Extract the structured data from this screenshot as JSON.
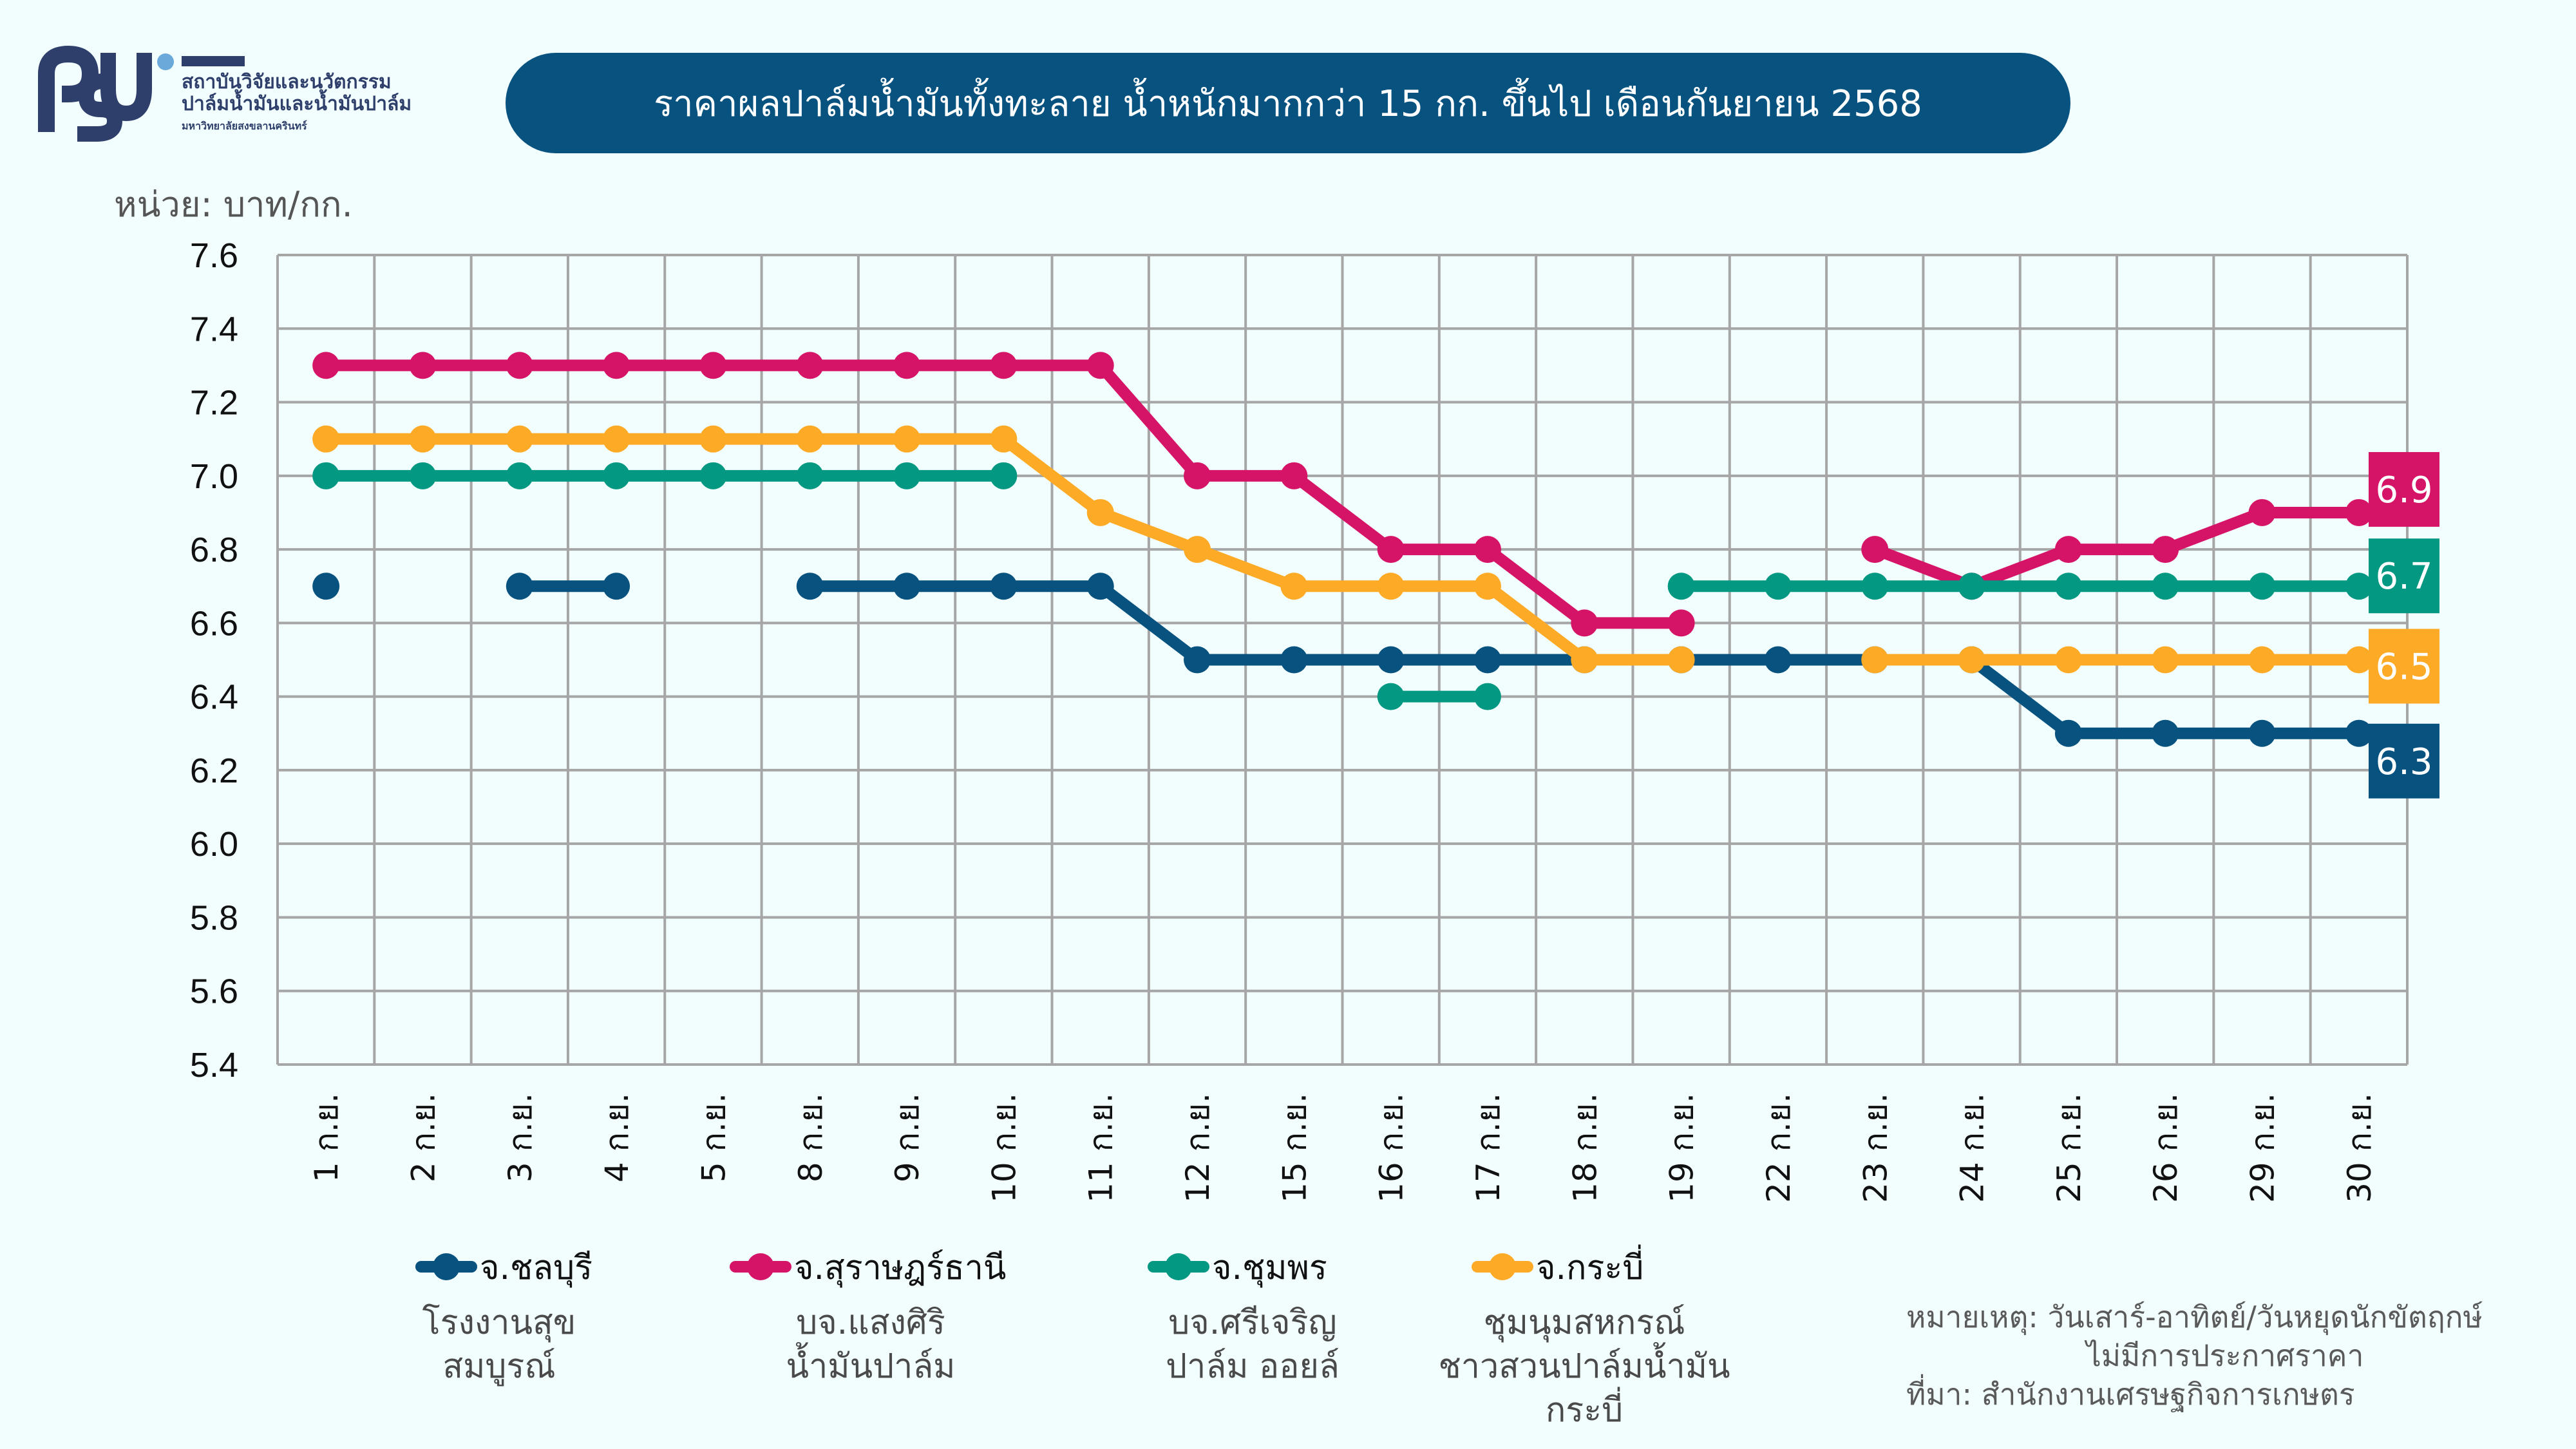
{
  "logo": {
    "mark": "PSU",
    "line1": "สถาบันวิจัยและนวัตกรรม",
    "line2": "ปาล์มน้ำมันและน้ำมันปาล์ม",
    "line3": "มหาวิทยาลัยสงขลานครินทร์"
  },
  "unit_label": "หน่วย: บาท/กก.",
  "chart_data": {
    "type": "line",
    "title": "ราคาผลปาล์มน้ำมันทั้งทะลาย น้ำหนักมากกว่า 15 กก. ขึ้นไป เดือนกันยายน 2568",
    "xlabel": "",
    "ylabel": "หน่วย: บาท/กก.",
    "ylim": [
      5.4,
      7.6
    ],
    "yticks": [
      "7.6",
      "7.4",
      "7.2",
      "7.0",
      "6.8",
      "6.6",
      "6.4",
      "6.2",
      "6.0",
      "5.8",
      "5.6",
      "5.4"
    ],
    "grid": true,
    "categories": [
      "1 ก.ย.",
      "2 ก.ย.",
      "3 ก.ย.",
      "4 ก.ย.",
      "5 ก.ย.",
      "8 ก.ย.",
      "9 ก.ย.",
      "10 ก.ย.",
      "11 ก.ย.",
      "12 ก.ย.",
      "15 ก.ย.",
      "16 ก.ย.",
      "17 ก.ย.",
      "18 ก.ย.",
      "19 ก.ย.",
      "22 ก.ย.",
      "23 ก.ย.",
      "24 ก.ย.",
      "25 ก.ย.",
      "26 ก.ย.",
      "29 ก.ย.",
      "30 ก.ย."
    ],
    "legend_position": "bottom",
    "series": [
      {
        "name": "จ.ชลบุรี",
        "source": [
          "โรงงานสุข",
          "สมบูรณ์"
        ],
        "color": "#08527f",
        "values": [
          6.7,
          null,
          6.7,
          6.7,
          null,
          6.7,
          6.7,
          6.7,
          6.7,
          6.5,
          6.5,
          6.5,
          6.5,
          6.5,
          6.5,
          6.5,
          6.5,
          6.5,
          6.3,
          6.3,
          6.3,
          6.3
        ],
        "end_label": "6.3"
      },
      {
        "name": "จ.สุราษฎร์ธานี",
        "source": [
          "บจ.แสงศิริ",
          "น้ำมันปาล์ม"
        ],
        "color": "#d51367",
        "values": [
          7.3,
          7.3,
          7.3,
          7.3,
          7.3,
          7.3,
          7.3,
          7.3,
          7.3,
          7.0,
          7.0,
          6.8,
          6.8,
          6.6,
          6.6,
          null,
          6.8,
          6.7,
          6.8,
          6.8,
          6.9,
          6.9
        ],
        "end_label": "6.9"
      },
      {
        "name": "จ.ชุมพร",
        "source": [
          "บจ.ศรีเจริญ",
          "ปาล์ม ออยล์"
        ],
        "color": "#029882",
        "values": [
          7.0,
          7.0,
          7.0,
          7.0,
          7.0,
          7.0,
          7.0,
          7.0,
          null,
          null,
          null,
          6.4,
          6.4,
          null,
          6.7,
          6.7,
          6.7,
          6.7,
          6.7,
          6.7,
          6.7,
          6.7
        ],
        "end_label": "6.7"
      },
      {
        "name": "จ.กระบี่",
        "source": [
          "ชุมนุมสหกรณ์",
          "ชาวสวนปาล์มน้ำมัน",
          "กระบี่"
        ],
        "color": "#fdaa26",
        "values": [
          7.1,
          7.1,
          7.1,
          7.1,
          7.1,
          7.1,
          7.1,
          7.1,
          6.9,
          6.8,
          6.7,
          6.7,
          6.7,
          6.5,
          6.5,
          null,
          6.5,
          6.5,
          6.5,
          6.5,
          6.5,
          6.5
        ],
        "end_label": "6.5"
      }
    ]
  },
  "note": {
    "line1": "หมายเหตุ: วันเสาร์-อาทิตย์/วันหยุดนักขัตฤกษ์",
    "line2": "ไม่มีการประกาศราคา",
    "line3": "ที่มา: สำนักงานเศรษฐกิจการเกษตร"
  }
}
